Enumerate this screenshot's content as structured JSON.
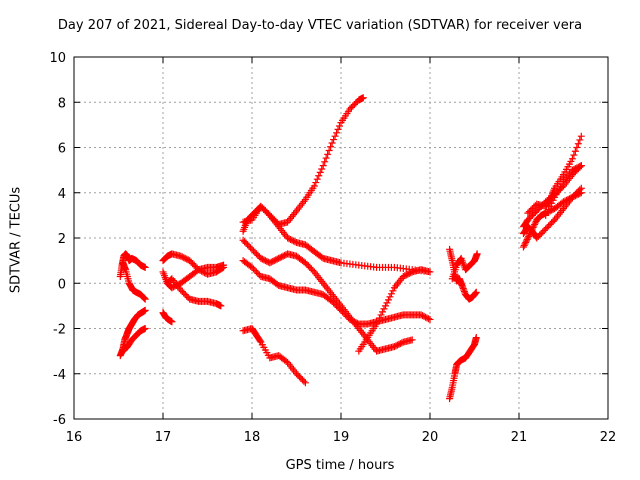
{
  "chart_data": {
    "type": "scatter",
    "title": "Day 207 of 2021, Sidereal Day-to-day VTEC variation (SDTVAR) for receiver vera",
    "xlabel": "GPS time / hours",
    "ylabel": "SDTVAR / TECUs",
    "xlim": [
      16,
      22
    ],
    "ylim": [
      -6,
      10
    ],
    "x_ticks": [
      "16",
      "17",
      "18",
      "19",
      "20",
      "21",
      "22"
    ],
    "y_ticks": [
      "-6",
      "-4",
      "-2",
      "0",
      "2",
      "4",
      "6",
      "8",
      "10"
    ],
    "grid": true,
    "marker": "+",
    "color": "#ff0000",
    "series": [
      {
        "name": "a1",
        "x": [
          16.52,
          16.55,
          16.57,
          16.6,
          16.62,
          16.65,
          16.68,
          16.72,
          16.76,
          16.8
        ],
        "y": [
          -3.2,
          -2.9,
          -2.5,
          -2.2,
          -2.0,
          -1.8,
          -1.6,
          -1.4,
          -1.3,
          -1.2
        ]
      },
      {
        "name": "a2",
        "x": [
          16.55,
          16.6,
          16.65,
          16.7,
          16.75,
          16.8
        ],
        "y": [
          -3.0,
          -2.8,
          -2.5,
          -2.3,
          -2.1,
          -2.0
        ]
      },
      {
        "name": "a3",
        "x": [
          16.52,
          16.54,
          16.56,
          16.58,
          16.6,
          16.62,
          16.65,
          16.7,
          16.75,
          16.8
        ],
        "y": [
          0.3,
          0.8,
          1.2,
          1.3,
          1.2,
          1.0,
          1.1,
          1.0,
          0.8,
          0.7
        ]
      },
      {
        "name": "a4",
        "x": [
          16.55,
          16.58,
          16.62,
          16.66,
          16.7,
          16.75,
          16.8
        ],
        "y": [
          0.9,
          0.6,
          0.0,
          -0.3,
          -0.4,
          -0.5,
          -0.7
        ]
      },
      {
        "name": "b1",
        "x": [
          17.0,
          17.03,
          17.06,
          17.1
        ],
        "y": [
          -1.3,
          -1.5,
          -1.6,
          -1.7
        ]
      },
      {
        "name": "b2",
        "x": [
          17.0,
          17.05,
          17.1,
          17.2,
          17.3,
          17.4,
          17.5,
          17.6,
          17.68
        ],
        "y": [
          1.0,
          1.2,
          1.3,
          1.2,
          1.0,
          0.6,
          0.4,
          0.5,
          0.7
        ]
      },
      {
        "name": "b3",
        "x": [
          17.0,
          17.05,
          17.1,
          17.2,
          17.3,
          17.4,
          17.5,
          17.6,
          17.68
        ],
        "y": [
          0.5,
          0.0,
          -0.2,
          0.0,
          0.3,
          0.6,
          0.7,
          0.7,
          0.8
        ]
      },
      {
        "name": "b4",
        "x": [
          17.05,
          17.1,
          17.2,
          17.3,
          17.4,
          17.5,
          17.6,
          17.65
        ],
        "y": [
          0.0,
          0.2,
          -0.3,
          -0.7,
          -0.8,
          -0.8,
          -0.9,
          -1.0
        ]
      },
      {
        "name": "c1",
        "x": [
          17.9,
          18.0,
          18.05,
          18.1,
          18.2,
          18.3,
          18.4,
          18.5,
          18.6
        ],
        "y": [
          -2.1,
          -2.0,
          -2.3,
          -2.6,
          -3.3,
          -3.2,
          -3.5,
          -4.0,
          -4.4
        ]
      },
      {
        "name": "c2",
        "x": [
          17.9,
          17.95,
          18.0,
          18.05,
          18.1,
          18.2,
          18.3,
          18.4,
          18.5,
          18.6,
          18.7,
          18.8,
          18.9,
          19.0,
          19.1,
          19.2,
          19.25
        ],
        "y": [
          2.3,
          2.8,
          3.0,
          3.2,
          3.4,
          3.0,
          2.6,
          2.7,
          3.2,
          3.7,
          4.3,
          5.2,
          6.2,
          7.1,
          7.7,
          8.1,
          8.2
        ]
      },
      {
        "name": "c3",
        "x": [
          17.9,
          18.0,
          18.1,
          18.2,
          18.3,
          18.4,
          18.5,
          18.6,
          18.7,
          18.8,
          18.9,
          19.0,
          19.2,
          19.4,
          19.6,
          19.8,
          20.0
        ],
        "y": [
          2.7,
          2.8,
          3.4,
          3.0,
          2.5,
          2.0,
          1.8,
          1.7,
          1.4,
          1.1,
          1.0,
          0.9,
          0.8,
          0.7,
          0.7,
          0.6,
          0.5
        ]
      },
      {
        "name": "c4",
        "x": [
          17.9,
          18.0,
          18.1,
          18.2,
          18.3,
          18.4,
          18.5,
          18.6,
          18.7,
          18.8,
          18.9,
          19.0,
          19.1,
          19.2,
          19.3,
          19.4,
          19.5,
          19.6,
          19.7,
          19.8
        ],
        "y": [
          1.9,
          1.5,
          1.1,
          0.9,
          1.1,
          1.3,
          1.2,
          0.9,
          0.5,
          0.0,
          -0.5,
          -1.0,
          -1.5,
          -2.0,
          -2.5,
          -3.0,
          -2.9,
          -2.8,
          -2.6,
          -2.5
        ]
      },
      {
        "name": "c5",
        "x": [
          17.9,
          18.0,
          18.1,
          18.2,
          18.3,
          18.4,
          18.5,
          18.6,
          18.7,
          18.8,
          18.9,
          19.0,
          19.1,
          19.2,
          19.3,
          19.4,
          19.5,
          19.6,
          19.7,
          19.8,
          19.9,
          20.0
        ],
        "y": [
          1.0,
          0.7,
          0.3,
          0.2,
          -0.1,
          -0.2,
          -0.3,
          -0.3,
          -0.4,
          -0.5,
          -0.8,
          -1.2,
          -1.6,
          -1.8,
          -1.8,
          -1.7,
          -1.6,
          -1.5,
          -1.4,
          -1.4,
          -1.4,
          -1.6
        ]
      },
      {
        "name": "c6",
        "x": [
          19.2,
          19.3,
          19.4,
          19.5,
          19.6,
          19.7,
          19.8,
          19.9,
          20.0
        ],
        "y": [
          -3.0,
          -2.4,
          -1.8,
          -1.0,
          -0.2,
          0.3,
          0.5,
          0.6,
          0.5
        ]
      },
      {
        "name": "d1",
        "x": [
          20.22,
          20.25,
          20.28,
          20.3,
          20.32,
          20.35,
          20.4,
          20.45,
          20.5,
          20.52
        ],
        "y": [
          -5.1,
          -4.6,
          -4.0,
          -3.6,
          -3.5,
          -3.4,
          -3.3,
          -3.0,
          -2.7,
          -2.4
        ]
      },
      {
        "name": "d2",
        "x": [
          20.22,
          20.25,
          20.28,
          20.3,
          20.33,
          20.36,
          20.4,
          20.44,
          20.48,
          20.52
        ],
        "y": [
          1.5,
          1.0,
          0.4,
          0.1,
          0.2,
          -0.1,
          -0.5,
          -0.7,
          -0.6,
          -0.4
        ]
      },
      {
        "name": "d3",
        "x": [
          20.25,
          20.3,
          20.35,
          20.4,
          20.45,
          20.5,
          20.53
        ],
        "y": [
          0.2,
          0.8,
          1.1,
          0.6,
          0.8,
          1.0,
          1.3
        ]
      },
      {
        "name": "e1",
        "x": [
          21.05,
          21.1,
          21.15,
          21.2,
          21.25,
          21.3,
          21.4,
          21.5,
          21.6,
          21.7
        ],
        "y": [
          1.6,
          2.0,
          2.4,
          2.8,
          3.0,
          3.1,
          3.3,
          3.6,
          3.8,
          4.0
        ]
      },
      {
        "name": "e2",
        "x": [
          21.05,
          21.1,
          21.15,
          21.2,
          21.3,
          21.4,
          21.5,
          21.6,
          21.7
        ],
        "y": [
          2.2,
          2.5,
          2.3,
          2.0,
          2.4,
          2.8,
          3.3,
          3.8,
          4.2
        ]
      },
      {
        "name": "e3",
        "x": [
          21.05,
          21.1,
          21.2,
          21.3,
          21.4,
          21.5,
          21.6,
          21.7
        ],
        "y": [
          2.5,
          2.8,
          3.2,
          3.6,
          3.9,
          4.3,
          4.8,
          5.2
        ]
      },
      {
        "name": "e4",
        "x": [
          21.1,
          21.2,
          21.3,
          21.35,
          21.4,
          21.5,
          21.6,
          21.7
        ],
        "y": [
          3.1,
          3.5,
          3.4,
          3.7,
          4.2,
          4.8,
          5.5,
          6.5
        ]
      },
      {
        "name": "e5",
        "x": [
          21.3,
          21.4,
          21.5,
          21.6,
          21.7
        ],
        "y": [
          3.0,
          3.8,
          4.5,
          5.0,
          5.2
        ]
      }
    ]
  }
}
